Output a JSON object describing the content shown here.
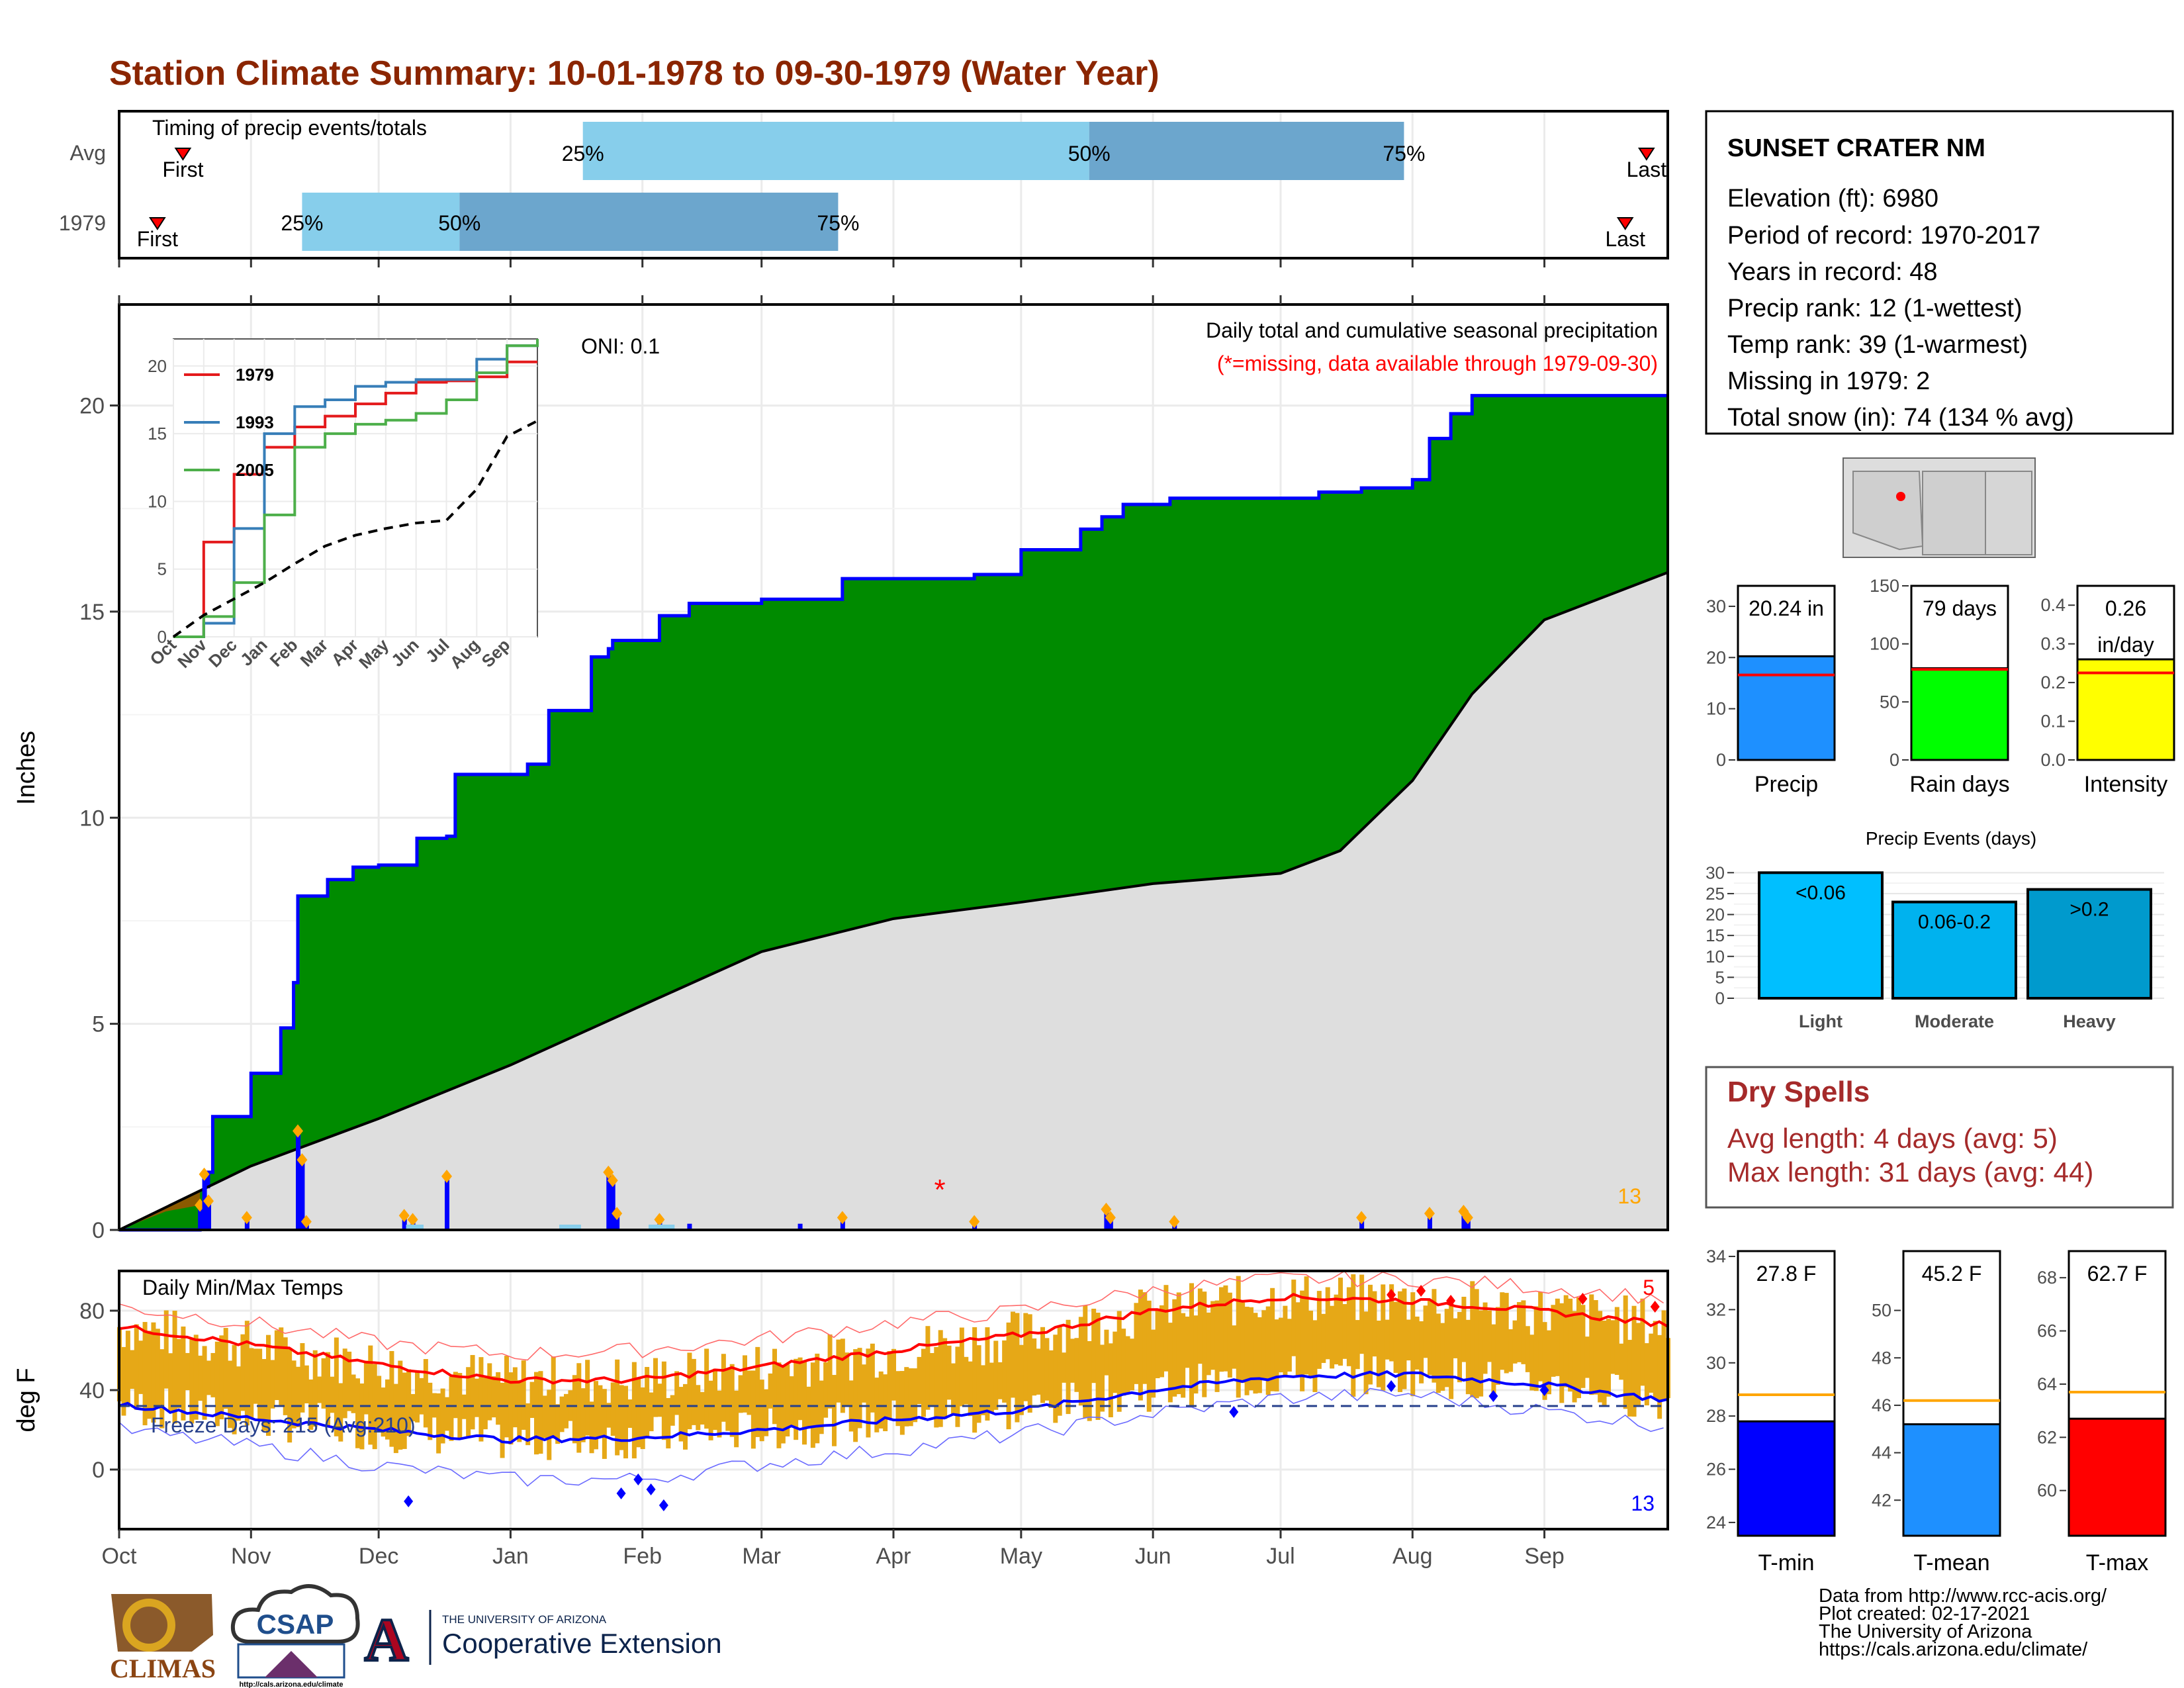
{
  "page": {
    "title": "Station Climate Summary: 10-01-1978 to 09-30-1979 (Water Year)",
    "title_color": "#8B2500"
  },
  "timing": {
    "label": "Timing of precip events/totals",
    "rows": [
      "Avg",
      "1979"
    ],
    "first_label": "First",
    "last_label": "Last",
    "pct_labels": [
      "25%",
      "50%",
      "75%"
    ],
    "avg": {
      "p25": "Jan 18",
      "p50": "May 17",
      "p75": "Jul 30"
    },
    "yr": {
      "p25": "Nov 13",
      "p50": "Dec 20",
      "p75": "Mar 19"
    },
    "colors": {
      "light": "#87CEEB",
      "dark": "#6CA6CD",
      "marker": "#FF0000"
    }
  },
  "precip_chart": {
    "ylabel": "Inches",
    "oni": "ONI: 0.1",
    "legend_title": "Daily total and cumulative seasonal precipitation",
    "missing_note": "(*=missing, data available through 1979-09-30)",
    "corner_count": "13",
    "months": [
      "Oct",
      "Nov",
      "Dec",
      "Jan",
      "Feb",
      "Mar",
      "Apr",
      "May",
      "Jun",
      "Jul",
      "Aug",
      "Sep"
    ],
    "yticks": [
      "0",
      "5",
      "10",
      "15",
      "20"
    ],
    "colors": {
      "above": "#008B00",
      "below": "#8B5A00",
      "normal": "#DEDEDE",
      "line": "#0000FF"
    }
  },
  "inset": {
    "months": [
      "Oct",
      "Nov",
      "Dec",
      "Jan",
      "Feb",
      "Mar",
      "Apr",
      "May",
      "Jun",
      "Jul",
      "Aug",
      "Sep"
    ],
    "yticks": [
      "0",
      "5",
      "10",
      "15",
      "20"
    ],
    "legend": [
      {
        "name": "1979",
        "color": "#E41A1C"
      },
      {
        "name": "1993",
        "color": "#377EB8"
      },
      {
        "name": "2005",
        "color": "#4DAF4A"
      }
    ]
  },
  "temp_chart": {
    "ylabel": "deg F",
    "title": "Daily Min/Max Temps",
    "freeze": "Freeze Days: 215 (Avg:210)",
    "max_count": "5",
    "min_count": "13",
    "yticks": [
      "0",
      "40",
      "80"
    ],
    "months": [
      "Oct",
      "Nov",
      "Dec",
      "Jan",
      "Feb",
      "Mar",
      "Apr",
      "May",
      "Jun",
      "Jul",
      "Aug",
      "Sep"
    ]
  },
  "station": {
    "name": "SUNSET CRATER NM",
    "lines": [
      "Elevation (ft): 6980",
      "Period of record: 1970-2017",
      "Years in record: 48",
      "Precip rank: 12 (1-wettest)",
      "Temp rank: 39 (1-warmest)",
      "Missing in 1979: 2",
      "Total snow (in): 74 (134 % avg)"
    ]
  },
  "summary_bars": [
    {
      "label": "Precip",
      "value": 20.24,
      "avg": 16.6,
      "text": "20.24 in",
      "color": "#1E90FF",
      "yticks": [
        "0",
        "10",
        "20",
        "30"
      ],
      "ymax": 34
    },
    {
      "label": "Rain days",
      "value": 79,
      "avg": 78,
      "text": "79 days",
      "color": "#00FF00",
      "yticks": [
        "0",
        "50",
        "100",
        "150"
      ],
      "ymax": 150
    },
    {
      "label": "Intensity",
      "value": 0.26,
      "avg": 0.225,
      "text": "0.26",
      "text2": "in/day",
      "color": "#FFFF00",
      "yticks": [
        "0.0",
        "0.1",
        "0.2",
        "0.3",
        "0.4"
      ],
      "ymax": 0.45
    }
  ],
  "events": {
    "title": "Precip Events (days)",
    "yticks": [
      "0",
      "5",
      "10",
      "15",
      "20",
      "25",
      "30"
    ],
    "bars": [
      {
        "label": "Light",
        "value": 30,
        "text": "<0.06",
        "color": "#00BFFF"
      },
      {
        "label": "Moderate",
        "value": 23,
        "text": "0.06-0.2",
        "color": "#00B2EE"
      },
      {
        "label": "Heavy",
        "value": 26,
        "text": ">0.2",
        "color": "#009ACD"
      }
    ]
  },
  "dry_spells": {
    "title": "Dry Spells",
    "avg_line": "Avg length: 4 days (avg: 5)",
    "max_line": "Max length: 31 days (avg: 44)",
    "color": "#A52A2A"
  },
  "temp_bars": [
    {
      "label": "T-min",
      "value": 27.8,
      "avg": 28.8,
      "text": "27.8 F",
      "color": "#0000FF",
      "ymin": 23.5,
      "ymax": 34.2,
      "yticks": [
        "24",
        "26",
        "28",
        "30",
        "32",
        "34"
      ]
    },
    {
      "label": "T-mean",
      "value": 45.2,
      "avg": 46.2,
      "text": "45.2 F",
      "color": "#1E90FF",
      "ymin": 40.5,
      "ymax": 52.5,
      "yticks": [
        "42",
        "44",
        "46",
        "48",
        "50"
      ]
    },
    {
      "label": "T-max",
      "value": 62.7,
      "avg": 63.7,
      "text": "62.7 F",
      "color": "#FF0000",
      "ymin": 58.3,
      "ymax": 69.0,
      "yticks": [
        "60",
        "62",
        "64",
        "66",
        "68"
      ]
    }
  ],
  "footer": {
    "lines": [
      "Data from http://www.rcc-acis.org/",
      "Plot created: 02-17-2021",
      "The University of Arizona",
      "https://cals.arizona.edu/climate/"
    ],
    "logos": {
      "climas": "CLIMAS",
      "csap": "CSAP",
      "csap_url": "http://cals.arizona.edu/climate",
      "ua_small": "THE UNIVERSITY OF ARIZONA",
      "ua_ext": "Cooperative Extension",
      "ua_letter": "A"
    }
  },
  "chart_data": [
    {
      "type": "area",
      "title": "Daily total and cumulative seasonal precipitation",
      "ylabel": "Inches",
      "ylim": [
        0,
        22
      ],
      "x_range": [
        "1978-10-01",
        "1979-09-30"
      ],
      "series": [
        {
          "name": "1979",
          "x": [
            "1978-10-01",
            "1978-10-20",
            "1978-10-21",
            "1978-10-22",
            "1978-10-23",
            "1978-11-01",
            "1978-11-08",
            "1978-11-11",
            "1978-11-12",
            "1978-11-19",
            "1978-11-25",
            "1978-12-01",
            "1978-12-10",
            "1978-12-17",
            "1978-12-19",
            "1979-01-05",
            "1979-01-10",
            "1979-01-20",
            "1979-01-24",
            "1979-01-25",
            "1979-02-05",
            "1979-02-12",
            "1979-03-01",
            "1979-03-10",
            "1979-03-20",
            "1979-04-01",
            "1979-04-20",
            "1979-05-01",
            "1979-05-15",
            "1979-05-20",
            "1979-05-25",
            "1979-06-05",
            "1979-06-20",
            "1979-07-01",
            "1979-07-10",
            "1979-07-20",
            "1979-08-01",
            "1979-08-05",
            "1979-08-10",
            "1979-08-15",
            "1979-09-30"
          ],
          "y": [
            0,
            0.6,
            1.05,
            1.4,
            2.75,
            3.8,
            4.9,
            6.0,
            8.1,
            8.5,
            8.8,
            8.85,
            9.5,
            9.55,
            11.05,
            11.3,
            12.6,
            13.9,
            14.1,
            14.3,
            14.9,
            15.2,
            15.3,
            15.3,
            15.8,
            15.8,
            15.9,
            16.5,
            17.0,
            17.3,
            17.6,
            17.75,
            17.75,
            17.75,
            17.9,
            18.0,
            18.2,
            19.2,
            19.8,
            20.24,
            20.24
          ]
        },
        {
          "name": "",
          "x": [
            "1978-10-01",
            "1978-11-01",
            "1978-12-01",
            "1979-01-01",
            "1979-02-01",
            "1979-03-01",
            "1979-04-01",
            "1979-05-01",
            "1979-06-01",
            "1979-07-01",
            "1979-07-15",
            "1979-08-01",
            "1979-08-15",
            "1979-09-01",
            "1979-09-30"
          ],
          "y": [
            0,
            1.55,
            2.7,
            4.0,
            5.45,
            6.75,
            7.55,
            7.95,
            8.4,
            8.65,
            9.2,
            10.9,
            13.0,
            14.8,
            15.95
          ]
        }
      ],
      "daily_precip": [
        {
          "date": "1978-10-20",
          "value": 0.6
        },
        {
          "date": "1978-10-21",
          "value": 1.35
        },
        {
          "date": "1978-10-22",
          "value": 0.7
        },
        {
          "date": "1978-10-31",
          "value": 0.3
        },
        {
          "date": "1978-11-12",
          "value": 2.4
        },
        {
          "date": "1978-11-13",
          "value": 1.7
        },
        {
          "date": "1978-11-14",
          "value": 0.2
        },
        {
          "date": "1978-12-07",
          "value": 0.35
        },
        {
          "date": "1978-12-09",
          "value": 0.25
        },
        {
          "date": "1978-12-17",
          "value": 1.3
        },
        {
          "date": "1979-01-24",
          "value": 1.4
        },
        {
          "date": "1979-01-25",
          "value": 1.2
        },
        {
          "date": "1979-01-26",
          "value": 0.4
        },
        {
          "date": "1979-02-05",
          "value": 0.25
        },
        {
          "date": "1979-02-12",
          "value": 0.15
        },
        {
          "date": "1979-03-10",
          "value": 0.15
        },
        {
          "date": "1979-03-20",
          "value": 0.3
        },
        {
          "date": "1979-04-20",
          "value": 0.2
        },
        {
          "date": "1979-05-21",
          "value": 0.5
        },
        {
          "date": "1979-05-22",
          "value": 0.3
        },
        {
          "date": "1979-06-06",
          "value": 0.2
        },
        {
          "date": "1979-07-20",
          "value": 0.3
        },
        {
          "date": "1979-08-05",
          "value": 0.4
        },
        {
          "date": "1979-08-13",
          "value": 0.45
        },
        {
          "date": "1979-08-14",
          "value": 0.3
        }
      ]
    },
    {
      "type": "line",
      "title": "",
      "x_range": [
        "1978-10-01",
        "1979-09-30"
      ],
      "ylim": [
        0,
        22
      ],
      "series": [
        {
          "name": "1979",
          "x": [
            "Oct",
            "Nov",
            "Dec",
            "Jan",
            "Feb",
            "Mar",
            "Apr",
            "May",
            "Jun",
            "Jul",
            "Aug",
            "Sep",
            "Sep-end"
          ],
          "y": [
            0,
            7,
            12,
            14,
            15.5,
            16.3,
            17.2,
            18.0,
            18.8,
            18.9,
            19.2,
            20.3,
            20.3
          ]
        },
        {
          "name": "1993",
          "x": [
            "Oct",
            "Nov",
            "Dec",
            "Jan",
            "Feb",
            "Mar",
            "Apr",
            "May",
            "Jun",
            "Jul",
            "Aug",
            "Sep",
            "Sep-end"
          ],
          "y": [
            0,
            1,
            8,
            15,
            17,
            17.5,
            18.5,
            18.8,
            19.0,
            19.0,
            20.5,
            21.5,
            22
          ]
        },
        {
          "name": "2005",
          "x": [
            "Oct",
            "Nov",
            "Dec",
            "Jan",
            "Feb",
            "Mar",
            "Apr",
            "May",
            "Jun",
            "Jul",
            "Aug",
            "Sep",
            "Sep-end"
          ],
          "y": [
            0,
            1.5,
            4,
            9,
            14,
            15,
            15.7,
            16,
            16.5,
            17.5,
            19.5,
            21.5,
            22
          ]
        },
        {
          "name": "",
          "x": [
            "Oct",
            "Nov",
            "Dec",
            "Jan",
            "Feb",
            "Mar",
            "Apr",
            "May",
            "Jun",
            "Jul",
            "Aug",
            "Sep",
            "Sep-end"
          ],
          "y": [
            0,
            1.6,
            2.8,
            4.0,
            5.4,
            6.7,
            7.5,
            8.0,
            8.4,
            8.6,
            10.9,
            14.8,
            15.95
          ]
        }
      ]
    },
    {
      "type": "line",
      "title": "Daily Min/Max Temps",
      "ylabel": "deg F",
      "ylim": [
        -30,
        100
      ],
      "x": [
        "Oct",
        "Nov",
        "Dec",
        "Jan",
        "Feb",
        "Mar",
        "Apr",
        "May",
        "Jun",
        "Jul",
        "Aug",
        "Sep",
        "Sep-end"
      ],
      "series": [
        {
          "name": "",
          "y": [
            72,
            63,
            53,
            45,
            45,
            52,
            60,
            68,
            80,
            87,
            85,
            80,
            73
          ]
        },
        {
          "name": "",
          "y": [
            33,
            26,
            20,
            15,
            16,
            20,
            25,
            30,
            40,
            47,
            48,
            43,
            35
          ]
        },
        {
          "name": "",
          "y": [
            82,
            74,
            64,
            58,
            60,
            66,
            74,
            80,
            90,
            96,
            96,
            92,
            86
          ]
        },
        {
          "name": "",
          "y": [
            20,
            12,
            2,
            -5,
            -5,
            3,
            10,
            18,
            28,
            36,
            38,
            30,
            22
          ]
        }
      ],
      "freeze_threshold": 32
    },
    {
      "type": "bar",
      "title": "",
      "categories": [
        "Precip",
        "Rain days",
        "Intensity"
      ],
      "values": [
        20.24,
        79,
        0.26
      ]
    },
    {
      "type": "bar",
      "title": "Precip Events (days)",
      "categories": [
        "Light",
        "Moderate",
        "Heavy"
      ],
      "values": [
        30,
        23,
        26
      ]
    },
    {
      "type": "bar",
      "title": "",
      "categories": [
        "T-min",
        "T-mean",
        "T-max"
      ],
      "values": [
        27.8,
        45.2,
        62.7
      ]
    }
  ]
}
